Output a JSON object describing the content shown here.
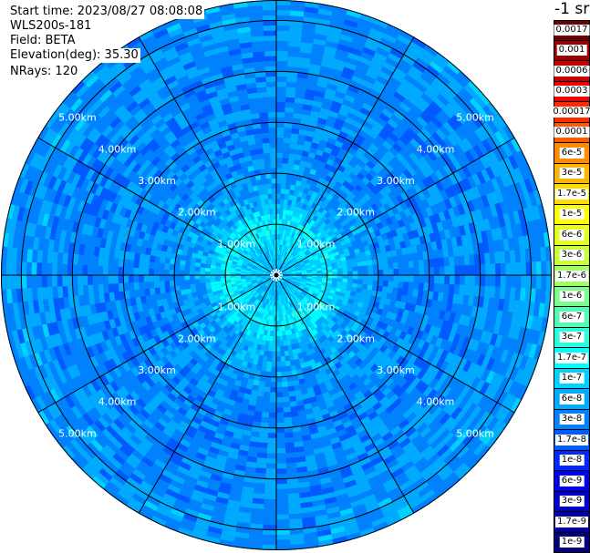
{
  "header": {
    "start_time": "Start time: 2023/08/27 08:08:08",
    "instrument": "WLS200s-181",
    "field": "Field: BETA",
    "elevation": "Elevation(deg): 35.30",
    "nrays": "NRays: 120"
  },
  "colorbar": {
    "unit": "-1 sr",
    "labels": [
      "0.0017",
      "0.001",
      "0.0006",
      "0.0003",
      "0.00017",
      "0.0001",
      "6e-5",
      "3e-5",
      "1.7e-5",
      "1e-5",
      "6e-6",
      "3e-6",
      "1.7e-6",
      "1e-6",
      "6e-7",
      "3e-7",
      "1.7e-7",
      "1e-7",
      "6e-8",
      "3e-8",
      "1.7e-8",
      "1e-8",
      "6e-9",
      "3e-9",
      "1.7e-9",
      "1e-9"
    ],
    "colors": [
      "#6a0000",
      "#9a0000",
      "#c80000",
      "#f00000",
      "#ff2a00",
      "#ff5a00",
      "#ff8a00",
      "#ffb400",
      "#ffdc00",
      "#ffff00",
      "#e6ff1a",
      "#c8ff3c",
      "#a0ff64",
      "#78ff8c",
      "#50ffb4",
      "#28ffdc",
      "#00ffff",
      "#00d2ff",
      "#00aaff",
      "#0082ff",
      "#005aff",
      "#0028ff",
      "#0000f0",
      "#0000c8",
      "#0000a0",
      "#000078"
    ]
  },
  "chart_data": {
    "type": "heatmap",
    "projection": "polar",
    "field": "BETA",
    "nrays": 120,
    "range_rings_km": [
      1,
      2,
      3,
      4,
      5
    ],
    "ring_labels": [
      "1.00km",
      "2.00km",
      "3.00km",
      "4.00km",
      "5.00km"
    ],
    "max_range_km": 5.4,
    "radial_spokes_deg": [
      0,
      30,
      60,
      90,
      120,
      150,
      180,
      210,
      240,
      270,
      300,
      330
    ],
    "value_profile": [
      {
        "range_km": 0.5,
        "beta": 1e-07
      },
      {
        "range_km": 1.0,
        "beta": 1.7e-07
      },
      {
        "range_km": 1.5,
        "beta": 6e-08
      },
      {
        "range_km": 2.5,
        "beta": 4e-08
      },
      {
        "range_km": 4.0,
        "beta": 4e-08
      },
      {
        "range_km": 5.3,
        "beta": 5e-08
      }
    ]
  }
}
